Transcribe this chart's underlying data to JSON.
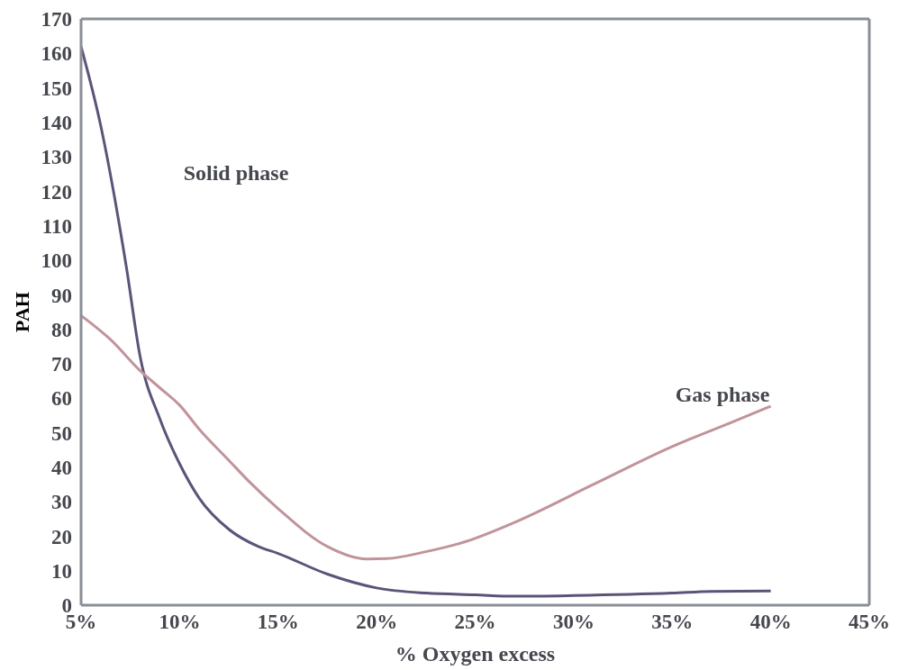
{
  "chart_data": {
    "type": "line",
    "xlabel": "% Oxygen excess",
    "ylabel": "PAH",
    "xlim": [
      5,
      45
    ],
    "xticks": [
      {
        "value": 5,
        "label": "5%"
      },
      {
        "value": 10,
        "label": "10%"
      },
      {
        "value": 15,
        "label": "15%"
      },
      {
        "value": 20,
        "label": "20%"
      },
      {
        "value": 25,
        "label": "25%"
      },
      {
        "value": 30,
        "label": "30%"
      },
      {
        "value": 35,
        "label": "35%"
      },
      {
        "value": 40,
        "label": "40%"
      },
      {
        "value": 45,
        "label": "45%"
      }
    ],
    "ylim": [
      0,
      170
    ],
    "yticks": [
      0,
      10,
      20,
      30,
      40,
      50,
      60,
      70,
      80,
      90,
      100,
      110,
      120,
      130,
      140,
      150,
      160,
      170
    ],
    "grid": false,
    "legend": false,
    "marker": "none",
    "line_style": "solid",
    "series": [
      {
        "color": "#5c5478",
        "x": [
          5,
          6,
          7.3,
          8,
          9,
          10,
          11,
          12.5,
          14,
          15,
          17.5,
          20,
          22.5,
          25,
          27,
          30,
          35,
          37,
          40
        ],
        "values": [
          162,
          139,
          98,
          72,
          54,
          41,
          31,
          22,
          17,
          15,
          9,
          5,
          3.5,
          3,
          2.6,
          2.8,
          3.5,
          4,
          4.1
        ]
      },
      {
        "color": "#c0949a",
        "x": [
          5,
          6.5,
          8,
          9,
          10,
          11,
          12.5,
          13.5,
          15,
          17.5,
          19.5,
          20.5,
          22.5,
          24.5,
          27,
          31,
          35,
          38,
          40
        ],
        "values": [
          84,
          77,
          68,
          63,
          58,
          51,
          42,
          36,
          28,
          17,
          13.4,
          13.5,
          15.5,
          18.4,
          24,
          35,
          46,
          53,
          57.7
        ]
      }
    ],
    "annotations": [
      "Solid phase",
      "Gas phase"
    ]
  }
}
